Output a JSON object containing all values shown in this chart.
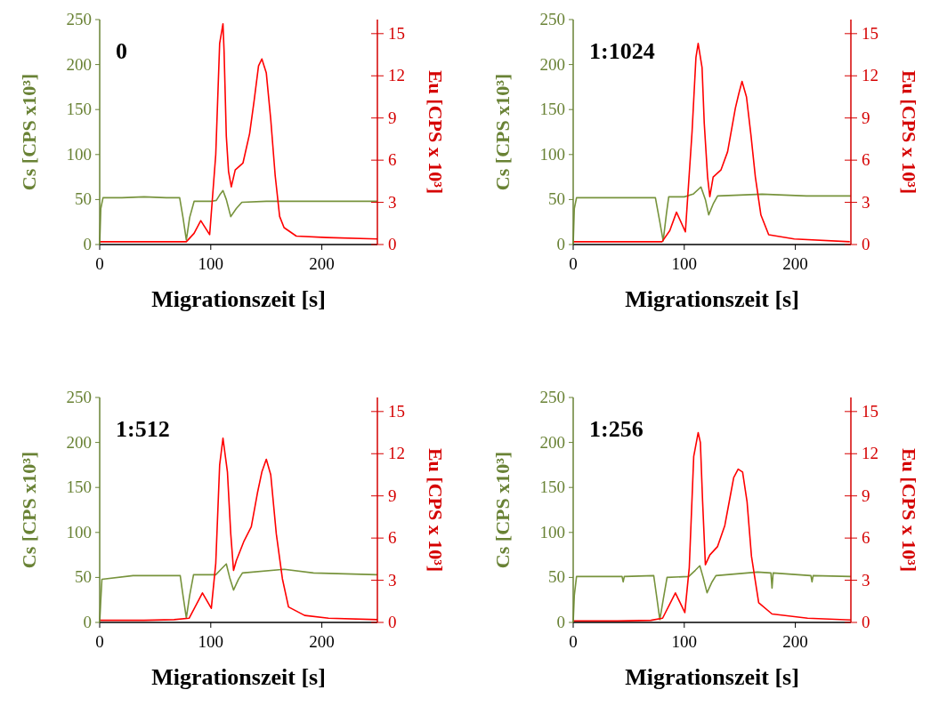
{
  "chart_data": [
    {
      "type": "line",
      "title": "0",
      "xlabel": "Migrationszeit [s]",
      "ylabel": "Cs [CPS x10³]",
      "y2label": "Eu [CPS x 10³]",
      "xlim": [
        0,
        250
      ],
      "xticks": [
        0,
        100,
        200
      ],
      "ylim": [
        0,
        250
      ],
      "yticks": [
        0,
        50,
        100,
        150,
        200,
        250
      ],
      "y2lim": [
        0,
        16
      ],
      "y2ticks": [
        0,
        3,
        6,
        9,
        12,
        15
      ],
      "series": [
        {
          "color": "#77933c",
          "x": [
            0,
            1,
            3,
            20,
            40,
            60,
            72,
            75,
            78,
            81,
            85,
            100,
            105,
            108,
            111,
            114,
            118,
            123,
            128,
            150,
            200,
            250
          ],
          "values": [
            0,
            40,
            52,
            52,
            53,
            52,
            52,
            30,
            5,
            30,
            48,
            48,
            49,
            55,
            60,
            50,
            31,
            40,
            47,
            48,
            48,
            48
          ]
        },
        {
          "color": "#ff0000",
          "axis": "y2",
          "x": [
            0,
            40,
            78,
            85,
            91,
            99,
            104.5,
            108,
            111,
            112,
            114,
            116,
            118.5,
            122,
            129,
            131,
            135,
            139,
            143,
            146,
            150,
            154,
            158,
            162,
            166,
            177,
            204,
            250
          ],
          "values": [
            0.2,
            0.2,
            0.2,
            0.8,
            1.7,
            0.7,
            6.4,
            14.3,
            15.7,
            13.7,
            7.7,
            5.2,
            4.1,
            5.3,
            5.8,
            6.5,
            7.9,
            10.2,
            12.7,
            13.2,
            12.2,
            8.9,
            4.9,
            2,
            1.2,
            0.6,
            0.5,
            0.4
          ]
        }
      ]
    },
    {
      "type": "line",
      "title": "1:1024",
      "xlabel": "Migrationszeit [s]",
      "ylabel": "Cs [CPS x10³]",
      "y2label": "Eu [CPS x 10³]",
      "xlim": [
        0,
        250
      ],
      "xticks": [
        0,
        100,
        200
      ],
      "ylim": [
        0,
        250
      ],
      "yticks": [
        0,
        50,
        100,
        150,
        200,
        250
      ],
      "y2lim": [
        0,
        16
      ],
      "y2ticks": [
        0,
        3,
        6,
        9,
        12,
        15
      ],
      "series": [
        {
          "color": "#77933c",
          "x": [
            0,
            1,
            3,
            30,
            60,
            74,
            78,
            81,
            84,
            86,
            100,
            108,
            115,
            119,
            122,
            126,
            130,
            170,
            210,
            250
          ],
          "values": [
            0,
            40,
            52,
            52,
            52,
            52,
            25,
            4,
            35,
            53,
            53,
            56,
            64,
            50,
            33,
            45,
            54,
            56,
            54,
            54
          ]
        },
        {
          "color": "#ff0000",
          "axis": "y2",
          "x": [
            0,
            40,
            80,
            87,
            93,
            101,
            107,
            110.5,
            112.5,
            116,
            118,
            121,
            123,
            126,
            133,
            139,
            146,
            149,
            152,
            156,
            160,
            164,
            169,
            176,
            199,
            249
          ],
          "values": [
            0.2,
            0.2,
            0.2,
            1,
            2.3,
            0.9,
            8,
            13.3,
            14.3,
            12.6,
            8.6,
            4.8,
            3.4,
            4.8,
            5.3,
            6.6,
            9.7,
            10.7,
            11.6,
            10.5,
            7.8,
            4.8,
            2.1,
            0.7,
            0.4,
            0.2
          ]
        }
      ]
    },
    {
      "type": "line",
      "title": "1:512",
      "xlabel": "Migrationszeit [s]",
      "ylabel": "Cs [CPS x10³]",
      "y2label": "Eu [CPS x 10³]",
      "xlim": [
        0,
        250
      ],
      "xticks": [
        0,
        100,
        200
      ],
      "ylim": [
        0,
        250
      ],
      "yticks": [
        0,
        50,
        100,
        150,
        200,
        250
      ],
      "y2lim": [
        0,
        16
      ],
      "y2ticks": [
        0,
        3,
        6,
        9,
        12,
        15
      ],
      "series": [
        {
          "color": "#77933c",
          "x": [
            0,
            1,
            2,
            30,
            60,
            72.5,
            75,
            78,
            81,
            84.5,
            100,
            104.5,
            110,
            114,
            117,
            120.5,
            125,
            128.5,
            166,
            192.5,
            250
          ],
          "values": [
            0,
            25,
            48,
            52,
            52,
            52,
            30,
            5,
            30,
            53,
            53,
            53,
            60,
            65,
            50,
            36,
            48,
            55,
            59,
            55,
            53
          ]
        },
        {
          "color": "#ff0000",
          "axis": "y2",
          "x": [
            0,
            40,
            67,
            80.5,
            92.5,
            100.5,
            104.5,
            108,
            111,
            115,
            118,
            120.5,
            123,
            130,
            136.5,
            142,
            146,
            150,
            154,
            159,
            164.5,
            170,
            184.5,
            206,
            250
          ],
          "values": [
            0.15,
            0.15,
            0.2,
            0.3,
            2.1,
            1,
            4.2,
            11.2,
            13.1,
            10.7,
            6.3,
            3.7,
            4.4,
            5.8,
            6.8,
            9.2,
            10.7,
            11.6,
            10.5,
            6.3,
            3.1,
            1.1,
            0.5,
            0.3,
            0.2
          ]
        }
      ]
    },
    {
      "type": "line",
      "title": "1:256",
      "xlabel": "Migrationszeit [s]",
      "ylabel": "Cs [CPS x10³]",
      "y2label": "Eu [CPS x 10³]",
      "xlim": [
        0,
        250
      ],
      "xticks": [
        0,
        100,
        200
      ],
      "ylim": [
        0,
        250
      ],
      "yticks": [
        0,
        50,
        100,
        150,
        200,
        250
      ],
      "y2lim": [
        0,
        16
      ],
      "y2ticks": [
        0,
        3,
        6,
        9,
        12,
        15
      ],
      "series": [
        {
          "color": "#77933c",
          "x": [
            0,
            1,
            3,
            44,
            45,
            46,
            72.5,
            75,
            78,
            81,
            84.5,
            104,
            110,
            114,
            117,
            120.5,
            125,
            128.5,
            166,
            178,
            179,
            180,
            214,
            215,
            216,
            250
          ],
          "values": [
            0,
            30,
            51,
            51,
            45,
            51,
            52,
            30,
            3,
            25,
            50,
            51,
            58,
            63,
            50,
            33,
            45,
            52,
            56,
            55,
            38,
            55,
            52,
            45,
            52,
            51
          ]
        },
        {
          "color": "#ff0000",
          "axis": "y2",
          "x": [
            0,
            40,
            70,
            80.5,
            92,
            100.5,
            104.5,
            108.5,
            112.5,
            114.5,
            116.5,
            119,
            123,
            130,
            136.5,
            140.5,
            144.5,
            148.5,
            152.5,
            156.5,
            160.5,
            167,
            179,
            211,
            250
          ],
          "values": [
            0.1,
            0.1,
            0.15,
            0.3,
            2.1,
            0.7,
            3.9,
            11.8,
            13.5,
            12.8,
            8.6,
            4.1,
            4.8,
            5.4,
            6.9,
            8.6,
            10.3,
            10.9,
            10.7,
            8.6,
            4.7,
            1.4,
            0.6,
            0.3,
            0.17
          ]
        }
      ]
    }
  ]
}
